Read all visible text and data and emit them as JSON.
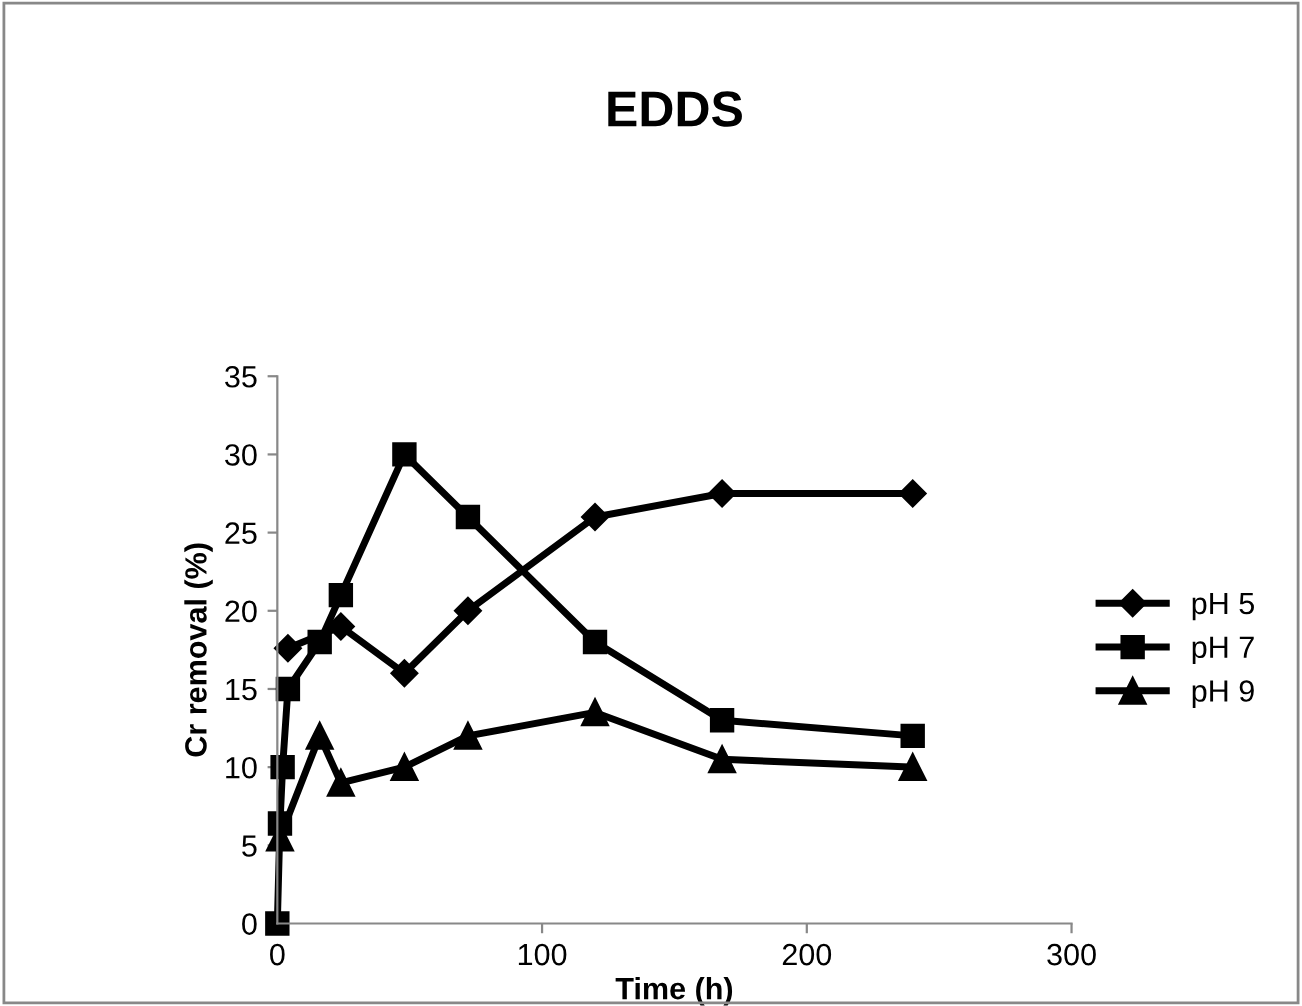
{
  "chart_data": {
    "type": "line",
    "title": "EDDS",
    "xlabel": "Time (h)",
    "ylabel": "Cr removal (%)",
    "xlim": [
      0,
      300
    ],
    "xticks": [
      0,
      100,
      200,
      300
    ],
    "ylim": [
      0,
      35
    ],
    "yticks": [
      0,
      5,
      10,
      15,
      20,
      25,
      30,
      35
    ],
    "grid": false,
    "legend": "right",
    "line_style": "solid",
    "series": [
      {
        "name": "pH 5",
        "color": "#000000",
        "marker": "diamond",
        "x": [
          4,
          24,
          48,
          72,
          120,
          168,
          240
        ],
        "values": [
          17.6,
          19,
          16,
          20,
          26,
          27.5,
          27.5
        ]
      },
      {
        "name": "pH 7",
        "color": "#000000",
        "marker": "square",
        "x": [
          0,
          1,
          2,
          4,
          16,
          24,
          48,
          72,
          120,
          168,
          240
        ],
        "values": [
          0,
          6.4,
          10,
          15,
          18,
          21,
          30,
          26,
          18,
          13,
          12
        ]
      },
      {
        "name": "pH 9",
        "color": "#000000",
        "marker": "triangle",
        "x": [
          1,
          16,
          24,
          48,
          72,
          120,
          168,
          240
        ],
        "values": [
          5.5,
          12,
          9,
          10,
          12,
          13.5,
          10.5,
          10
        ]
      }
    ]
  }
}
